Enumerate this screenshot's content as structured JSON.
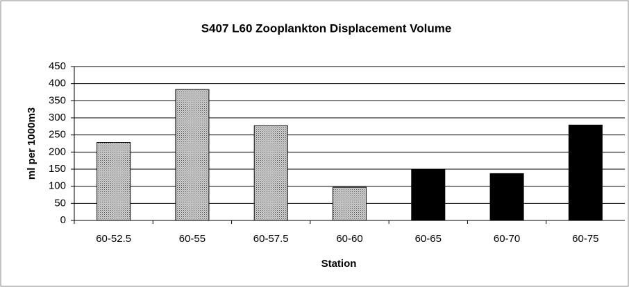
{
  "chart_data": {
    "type": "bar",
    "title": "S407 L60 Zooplankton Displacement Volume",
    "x_label": "Station",
    "y_label": "ml per 1000m3",
    "categories": [
      "60-52.5",
      "60-55",
      "60-57.5",
      "60-60",
      "60-65",
      "60-70",
      "60-75"
    ],
    "values": [
      228,
      383,
      277,
      97,
      150,
      137,
      279
    ],
    "colors": [
      "#cfcfcf",
      "#cfcfcf",
      "#cfcfcf",
      "#cfcfcf",
      "#000000",
      "#000000",
      "#000000"
    ],
    "ylim": [
      0,
      450
    ],
    "yticks": [
      0,
      50,
      100,
      150,
      200,
      250,
      300,
      350,
      400,
      450
    ],
    "grid": true
  }
}
